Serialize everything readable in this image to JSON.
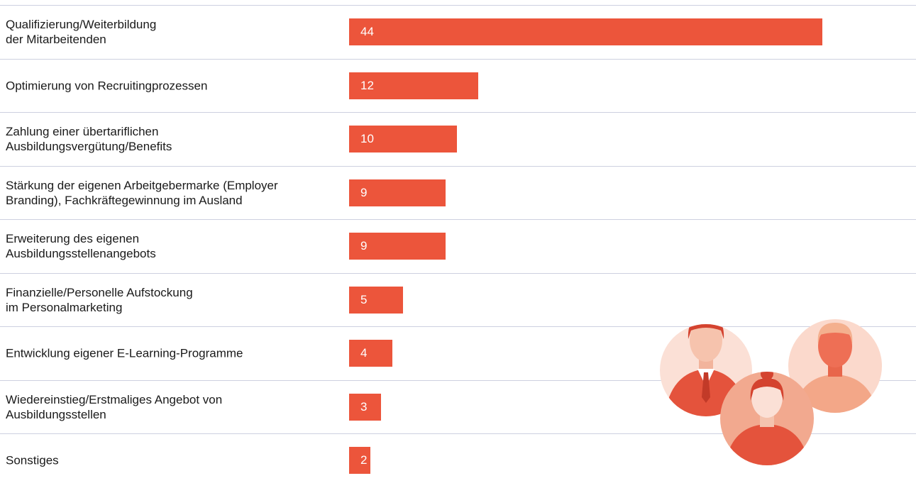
{
  "chart_data": {
    "type": "bar",
    "orientation": "horizontal",
    "categories": [
      "Qualifizierung/Weiterbildung\nder Mitarbeitenden",
      "Optimierung von Recruitingprozessen",
      "Zahlung einer übertariflichen\nAusbildungsvergütung/Benefits",
      "Stärkung der eigenen Arbeitgebermarke (Employer\nBranding), Fachkräftegewinnung im Ausland",
      "Erweiterung des eigenen\nAusbildungsstellenangebots",
      "Finanzielle/Personelle Aufstockung\nim Personalmarketing",
      "Entwicklung eigener E-Learning-Programme",
      "Wiedereinstieg/Erstmaliges Angebot von\nAusbildungsstellen",
      "Sonstiges"
    ],
    "values": [
      44,
      12,
      10,
      9,
      9,
      5,
      4,
      3,
      2
    ],
    "color": "#ec553b"
  }
}
